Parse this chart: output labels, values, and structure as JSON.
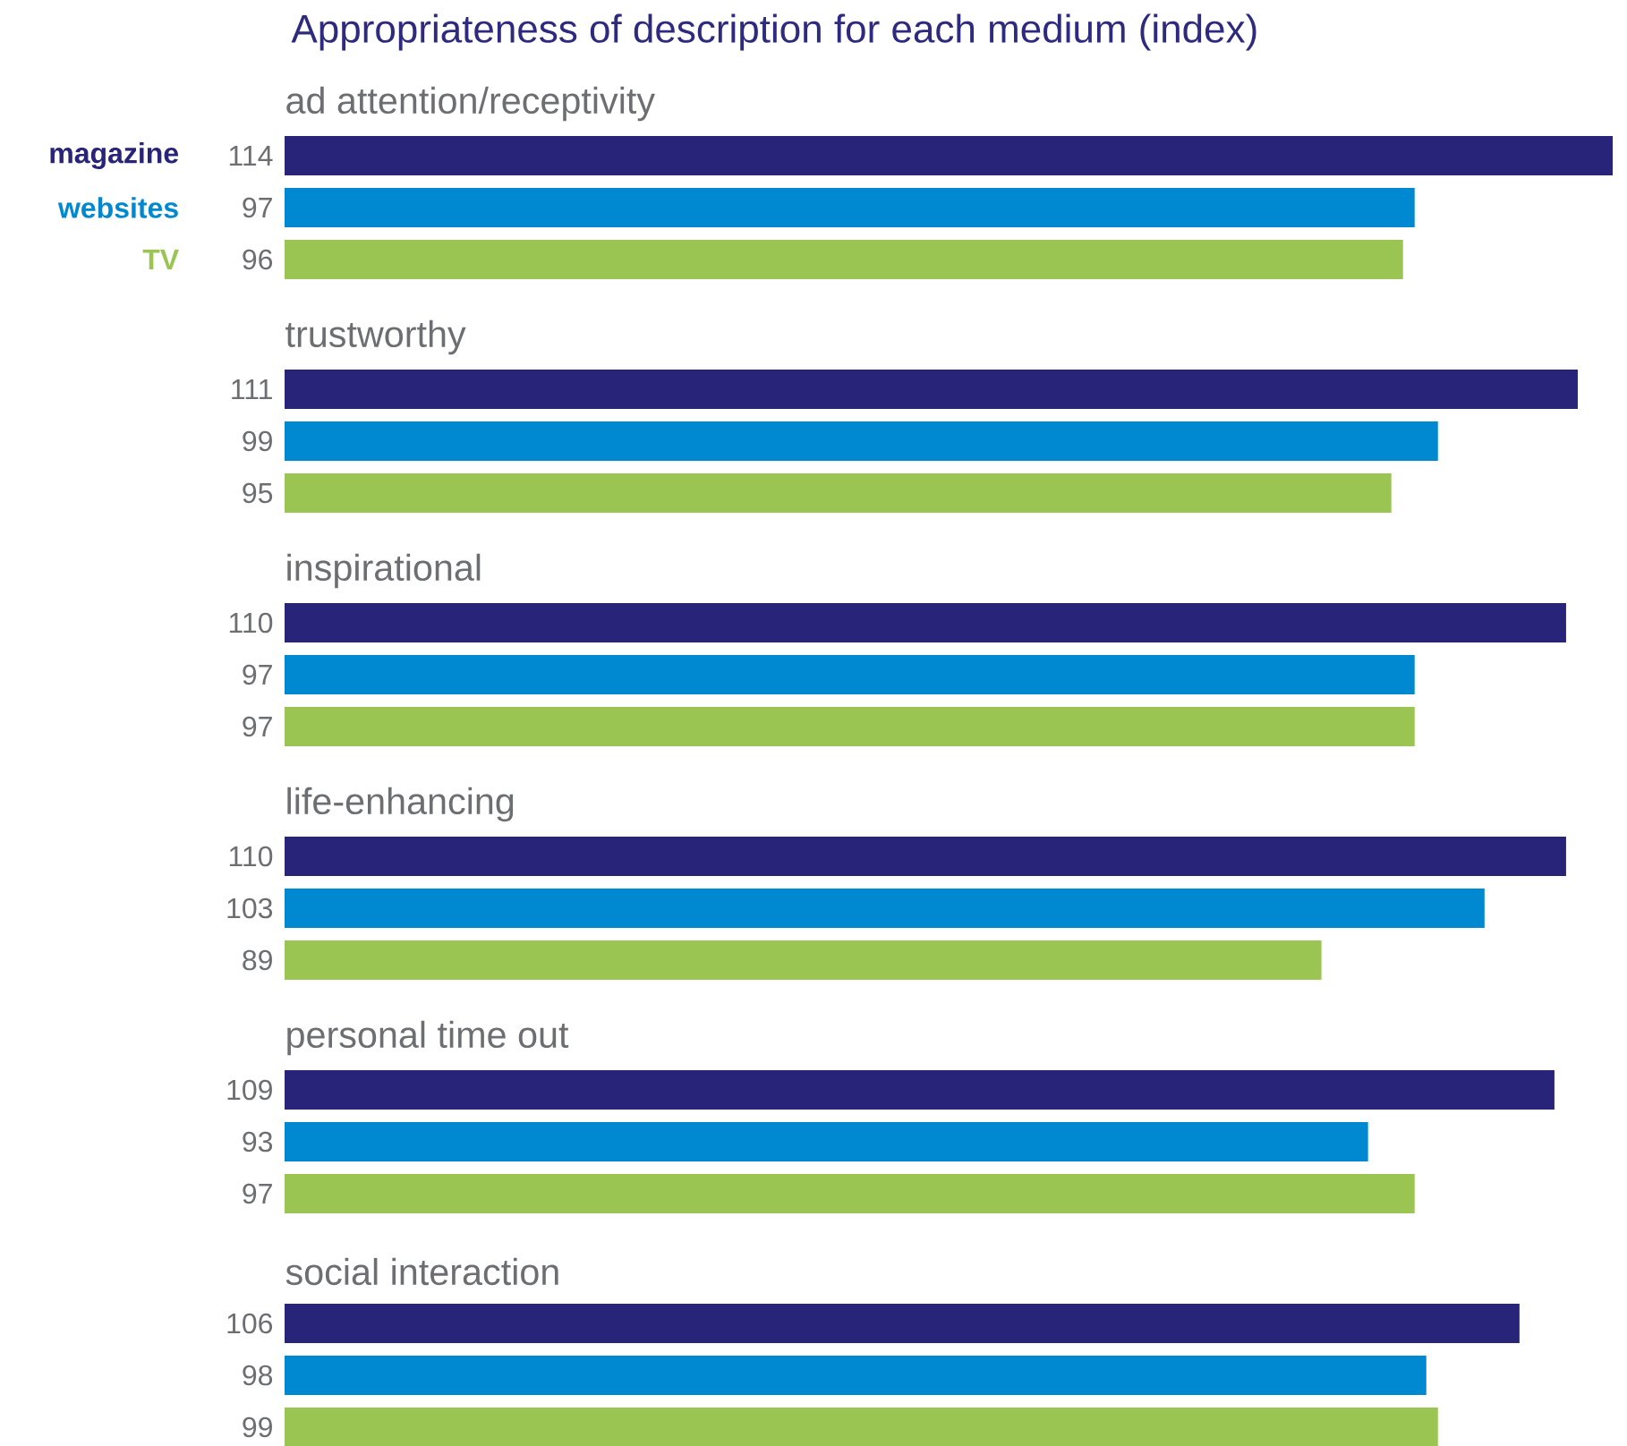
{
  "chart_data": {
    "type": "bar",
    "orientation": "horizontal",
    "title": "Appropriateness of description for each medium (index)",
    "categories": [
      "ad attention/receptivity",
      "trustworthy",
      "inspirational",
      "life-enhancing",
      "personal time out",
      "social interaction"
    ],
    "series": [
      {
        "name": "magazine",
        "color": "#27247a",
        "values": [
          114,
          111,
          110,
          110,
          109,
          106
        ]
      },
      {
        "name": "websites",
        "color": "#0088d1",
        "values": [
          97,
          99,
          97,
          103,
          93,
          98
        ]
      },
      {
        "name": "TV",
        "color": "#9bc553",
        "values": [
          96,
          95,
          97,
          89,
          97,
          99
        ]
      }
    ],
    "data_labels": true,
    "legend": "left"
  }
}
